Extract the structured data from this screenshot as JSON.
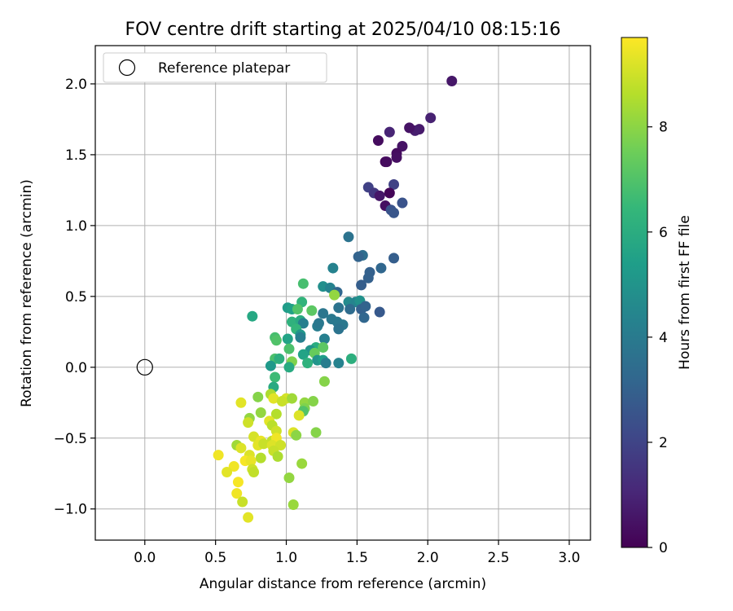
{
  "chart_data": {
    "type": "scatter",
    "title": "FOV centre drift starting at 2025/04/10 08:15:16",
    "xlabel": "Angular distance from reference (arcmin)",
    "ylabel": "Rotation from reference (arcmin)",
    "xlim": [
      -0.35,
      3.15
    ],
    "ylim": [
      -1.22,
      2.27
    ],
    "xticks": [
      0.0,
      0.5,
      1.0,
      1.5,
      2.0,
      2.5,
      3.0
    ],
    "xtick_labels": [
      "0.0",
      "0.5",
      "1.0",
      "1.5",
      "2.0",
      "2.5",
      "3.0"
    ],
    "yticks": [
      -1.0,
      -0.5,
      0.0,
      0.5,
      1.0,
      1.5,
      2.0
    ],
    "ytick_labels": [
      "−1.0",
      "−0.5",
      "0.0",
      "0.5",
      "1.0",
      "1.5",
      "2.0"
    ],
    "grid": true,
    "legend": {
      "placement": "upper-left",
      "label": "Reference platepar"
    },
    "reference_point": {
      "x": 0.0,
      "y": 0.0
    },
    "colorbar": {
      "label": "Hours from first FF file",
      "range": [
        0,
        9.7
      ],
      "ticks": [
        0,
        2,
        4,
        6,
        8
      ],
      "tick_labels": [
        "0",
        "2",
        "4",
        "6",
        "8"
      ],
      "colormap": "viridis",
      "colors": [
        "#440154",
        "#482878",
        "#3e4989",
        "#31688e",
        "#26828e",
        "#1f9e89",
        "#35b779",
        "#6ece58",
        "#b5de2b",
        "#fde725"
      ]
    },
    "points": [
      {
        "x": 2.17,
        "y": 2.02,
        "h": 0.6
      },
      {
        "x": 2.02,
        "y": 1.76,
        "h": 0.9
      },
      {
        "x": 1.94,
        "y": 1.68,
        "h": 0.7
      },
      {
        "x": 1.91,
        "y": 1.67,
        "h": 0.8
      },
      {
        "x": 1.87,
        "y": 1.69,
        "h": 0.5
      },
      {
        "x": 1.73,
        "y": 1.66,
        "h": 1.0
      },
      {
        "x": 1.65,
        "y": 1.6,
        "h": 0.3
      },
      {
        "x": 1.82,
        "y": 1.56,
        "h": 0.5
      },
      {
        "x": 1.78,
        "y": 1.51,
        "h": 0.3
      },
      {
        "x": 1.78,
        "y": 1.48,
        "h": 0.4
      },
      {
        "x": 1.7,
        "y": 1.45,
        "h": 0.2
      },
      {
        "x": 1.71,
        "y": 1.45,
        "h": 0.3
      },
      {
        "x": 1.76,
        "y": 1.29,
        "h": 1.9
      },
      {
        "x": 1.58,
        "y": 1.27,
        "h": 1.9
      },
      {
        "x": 1.62,
        "y": 1.23,
        "h": 1.6
      },
      {
        "x": 1.66,
        "y": 1.21,
        "h": 0.6
      },
      {
        "x": 1.73,
        "y": 1.23,
        "h": 0.1
      },
      {
        "x": 1.82,
        "y": 1.16,
        "h": 2.5
      },
      {
        "x": 1.7,
        "y": 1.14,
        "h": 0.4
      },
      {
        "x": 1.74,
        "y": 1.11,
        "h": 2.5
      },
      {
        "x": 1.76,
        "y": 1.09,
        "h": 2.6
      },
      {
        "x": 1.44,
        "y": 0.92,
        "h": 3.7
      },
      {
        "x": 1.54,
        "y": 0.79,
        "h": 3.5
      },
      {
        "x": 1.51,
        "y": 0.78,
        "h": 3.1
      },
      {
        "x": 1.76,
        "y": 0.77,
        "h": 2.9
      },
      {
        "x": 1.33,
        "y": 0.7,
        "h": 4.3
      },
      {
        "x": 1.67,
        "y": 0.7,
        "h": 3.2
      },
      {
        "x": 1.59,
        "y": 0.67,
        "h": 3.0
      },
      {
        "x": 1.58,
        "y": 0.63,
        "h": 3.0
      },
      {
        "x": 1.12,
        "y": 0.59,
        "h": 6.8
      },
      {
        "x": 1.53,
        "y": 0.58,
        "h": 2.9
      },
      {
        "x": 1.26,
        "y": 0.57,
        "h": 4.8
      },
      {
        "x": 1.31,
        "y": 0.56,
        "h": 4.3
      },
      {
        "x": 1.36,
        "y": 0.53,
        "h": 3.2
      },
      {
        "x": 1.34,
        "y": 0.51,
        "h": 8.1
      },
      {
        "x": 1.44,
        "y": 0.46,
        "h": 4.6
      },
      {
        "x": 1.49,
        "y": 0.46,
        "h": 4.4
      },
      {
        "x": 1.52,
        "y": 0.47,
        "h": 4.9
      },
      {
        "x": 1.11,
        "y": 0.46,
        "h": 6.3
      },
      {
        "x": 1.01,
        "y": 0.42,
        "h": 5.3
      },
      {
        "x": 1.04,
        "y": 0.41,
        "h": 5.5
      },
      {
        "x": 1.08,
        "y": 0.41,
        "h": 7.0
      },
      {
        "x": 1.18,
        "y": 0.4,
        "h": 7.2
      },
      {
        "x": 1.37,
        "y": 0.42,
        "h": 3.7
      },
      {
        "x": 1.45,
        "y": 0.41,
        "h": 3.4
      },
      {
        "x": 1.53,
        "y": 0.41,
        "h": 3.0
      },
      {
        "x": 1.56,
        "y": 0.43,
        "h": 3.1
      },
      {
        "x": 1.66,
        "y": 0.39,
        "h": 2.7
      },
      {
        "x": 0.76,
        "y": 0.36,
        "h": 5.8
      },
      {
        "x": 1.26,
        "y": 0.38,
        "h": 3.8
      },
      {
        "x": 1.32,
        "y": 0.34,
        "h": 3.9
      },
      {
        "x": 1.55,
        "y": 0.35,
        "h": 3.2
      },
      {
        "x": 1.04,
        "y": 0.32,
        "h": 6.2
      },
      {
        "x": 1.1,
        "y": 0.33,
        "h": 5.9
      },
      {
        "x": 1.12,
        "y": 0.31,
        "h": 4.2
      },
      {
        "x": 1.22,
        "y": 0.29,
        "h": 4.1
      },
      {
        "x": 1.36,
        "y": 0.32,
        "h": 3.9
      },
      {
        "x": 1.4,
        "y": 0.3,
        "h": 3.9
      },
      {
        "x": 1.07,
        "y": 0.27,
        "h": 6.4
      },
      {
        "x": 1.23,
        "y": 0.31,
        "h": 3.9
      },
      {
        "x": 1.37,
        "y": 0.27,
        "h": 3.7
      },
      {
        "x": 1.1,
        "y": 0.23,
        "h": 5.1
      },
      {
        "x": 0.92,
        "y": 0.21,
        "h": 6.8
      },
      {
        "x": 0.93,
        "y": 0.19,
        "h": 7.0
      },
      {
        "x": 1.01,
        "y": 0.2,
        "h": 5.6
      },
      {
        "x": 1.1,
        "y": 0.21,
        "h": 4.2
      },
      {
        "x": 1.27,
        "y": 0.2,
        "h": 4.2
      },
      {
        "x": 1.02,
        "y": 0.13,
        "h": 6.9
      },
      {
        "x": 1.21,
        "y": 0.14,
        "h": 6.0
      },
      {
        "x": 1.26,
        "y": 0.14,
        "h": 7.2
      },
      {
        "x": 1.17,
        "y": 0.12,
        "h": 5.0
      },
      {
        "x": 1.12,
        "y": 0.09,
        "h": 5.6
      },
      {
        "x": 1.2,
        "y": 0.1,
        "h": 7.4
      },
      {
        "x": 0.92,
        "y": 0.06,
        "h": 6.9
      },
      {
        "x": 0.95,
        "y": 0.06,
        "h": 6.1
      },
      {
        "x": 1.04,
        "y": 0.04,
        "h": 7.8
      },
      {
        "x": 1.22,
        "y": 0.05,
        "h": 5.0
      },
      {
        "x": 1.26,
        "y": 0.05,
        "h": 5.4
      },
      {
        "x": 1.46,
        "y": 0.06,
        "h": 6.1
      },
      {
        "x": 0.89,
        "y": 0.01,
        "h": 5.2
      },
      {
        "x": 1.15,
        "y": 0.03,
        "h": 6.2
      },
      {
        "x": 1.28,
        "y": 0.03,
        "h": 4.1
      },
      {
        "x": 1.37,
        "y": 0.03,
        "h": 4.3
      },
      {
        "x": 1.02,
        "y": 0.0,
        "h": 5.9
      },
      {
        "x": 0.92,
        "y": -0.07,
        "h": 6.6
      },
      {
        "x": 1.27,
        "y": -0.1,
        "h": 7.9
      },
      {
        "x": 0.91,
        "y": -0.14,
        "h": 5.9
      },
      {
        "x": 0.89,
        "y": -0.19,
        "h": 8.5
      },
      {
        "x": 0.8,
        "y": -0.21,
        "h": 7.9
      },
      {
        "x": 1.0,
        "y": -0.22,
        "h": 9.1
      },
      {
        "x": 1.04,
        "y": -0.22,
        "h": 8.3
      },
      {
        "x": 0.91,
        "y": -0.22,
        "h": 9.3
      },
      {
        "x": 0.97,
        "y": -0.24,
        "h": 8.9
      },
      {
        "x": 1.13,
        "y": -0.25,
        "h": 8.1
      },
      {
        "x": 1.19,
        "y": -0.24,
        "h": 7.9
      },
      {
        "x": 0.68,
        "y": -0.25,
        "h": 9.3
      },
      {
        "x": 1.13,
        "y": -0.29,
        "h": 7.8
      },
      {
        "x": 1.12,
        "y": -0.31,
        "h": 7.0
      },
      {
        "x": 0.82,
        "y": -0.32,
        "h": 8.1
      },
      {
        "x": 0.93,
        "y": -0.33,
        "h": 8.6
      },
      {
        "x": 1.09,
        "y": -0.34,
        "h": 9.2
      },
      {
        "x": 0.74,
        "y": -0.36,
        "h": 8.1
      },
      {
        "x": 0.73,
        "y": -0.39,
        "h": 9.0
      },
      {
        "x": 0.88,
        "y": -0.38,
        "h": 9.3
      },
      {
        "x": 0.9,
        "y": -0.41,
        "h": 8.7
      },
      {
        "x": 0.93,
        "y": -0.45,
        "h": 9.0
      },
      {
        "x": 1.05,
        "y": -0.46,
        "h": 9.2
      },
      {
        "x": 1.21,
        "y": -0.46,
        "h": 7.9
      },
      {
        "x": 1.07,
        "y": -0.48,
        "h": 8.0
      },
      {
        "x": 0.77,
        "y": -0.49,
        "h": 9.1
      },
      {
        "x": 0.82,
        "y": -0.52,
        "h": 9.4
      },
      {
        "x": 0.9,
        "y": -0.52,
        "h": 8.8
      },
      {
        "x": 0.93,
        "y": -0.5,
        "h": 9.5
      },
      {
        "x": 0.65,
        "y": -0.55,
        "h": 8.3
      },
      {
        "x": 0.8,
        "y": -0.55,
        "h": 9.3
      },
      {
        "x": 0.84,
        "y": -0.54,
        "h": 8.9
      },
      {
        "x": 0.9,
        "y": -0.55,
        "h": 9.2
      },
      {
        "x": 0.96,
        "y": -0.55,
        "h": 9.0
      },
      {
        "x": 0.68,
        "y": -0.57,
        "h": 9.2
      },
      {
        "x": 0.91,
        "y": -0.59,
        "h": 8.9
      },
      {
        "x": 0.52,
        "y": -0.62,
        "h": 9.5
      },
      {
        "x": 0.74,
        "y": -0.62,
        "h": 9.2
      },
      {
        "x": 0.82,
        "y": -0.64,
        "h": 8.6
      },
      {
        "x": 0.94,
        "y": -0.63,
        "h": 8.5
      },
      {
        "x": 0.71,
        "y": -0.66,
        "h": 9.6
      },
      {
        "x": 0.75,
        "y": -0.66,
        "h": 9.4
      },
      {
        "x": 1.11,
        "y": -0.68,
        "h": 8.2
      },
      {
        "x": 0.63,
        "y": -0.7,
        "h": 9.5
      },
      {
        "x": 0.76,
        "y": -0.72,
        "h": 9.0
      },
      {
        "x": 0.77,
        "y": -0.74,
        "h": 8.8
      },
      {
        "x": 0.58,
        "y": -0.74,
        "h": 9.3
      },
      {
        "x": 1.02,
        "y": -0.78,
        "h": 8.1
      },
      {
        "x": 0.66,
        "y": -0.81,
        "h": 9.6
      },
      {
        "x": 0.65,
        "y": -0.89,
        "h": 9.5
      },
      {
        "x": 0.69,
        "y": -0.95,
        "h": 8.9
      },
      {
        "x": 1.05,
        "y": -0.97,
        "h": 8.2
      },
      {
        "x": 0.73,
        "y": -1.06,
        "h": 9.3
      }
    ]
  }
}
